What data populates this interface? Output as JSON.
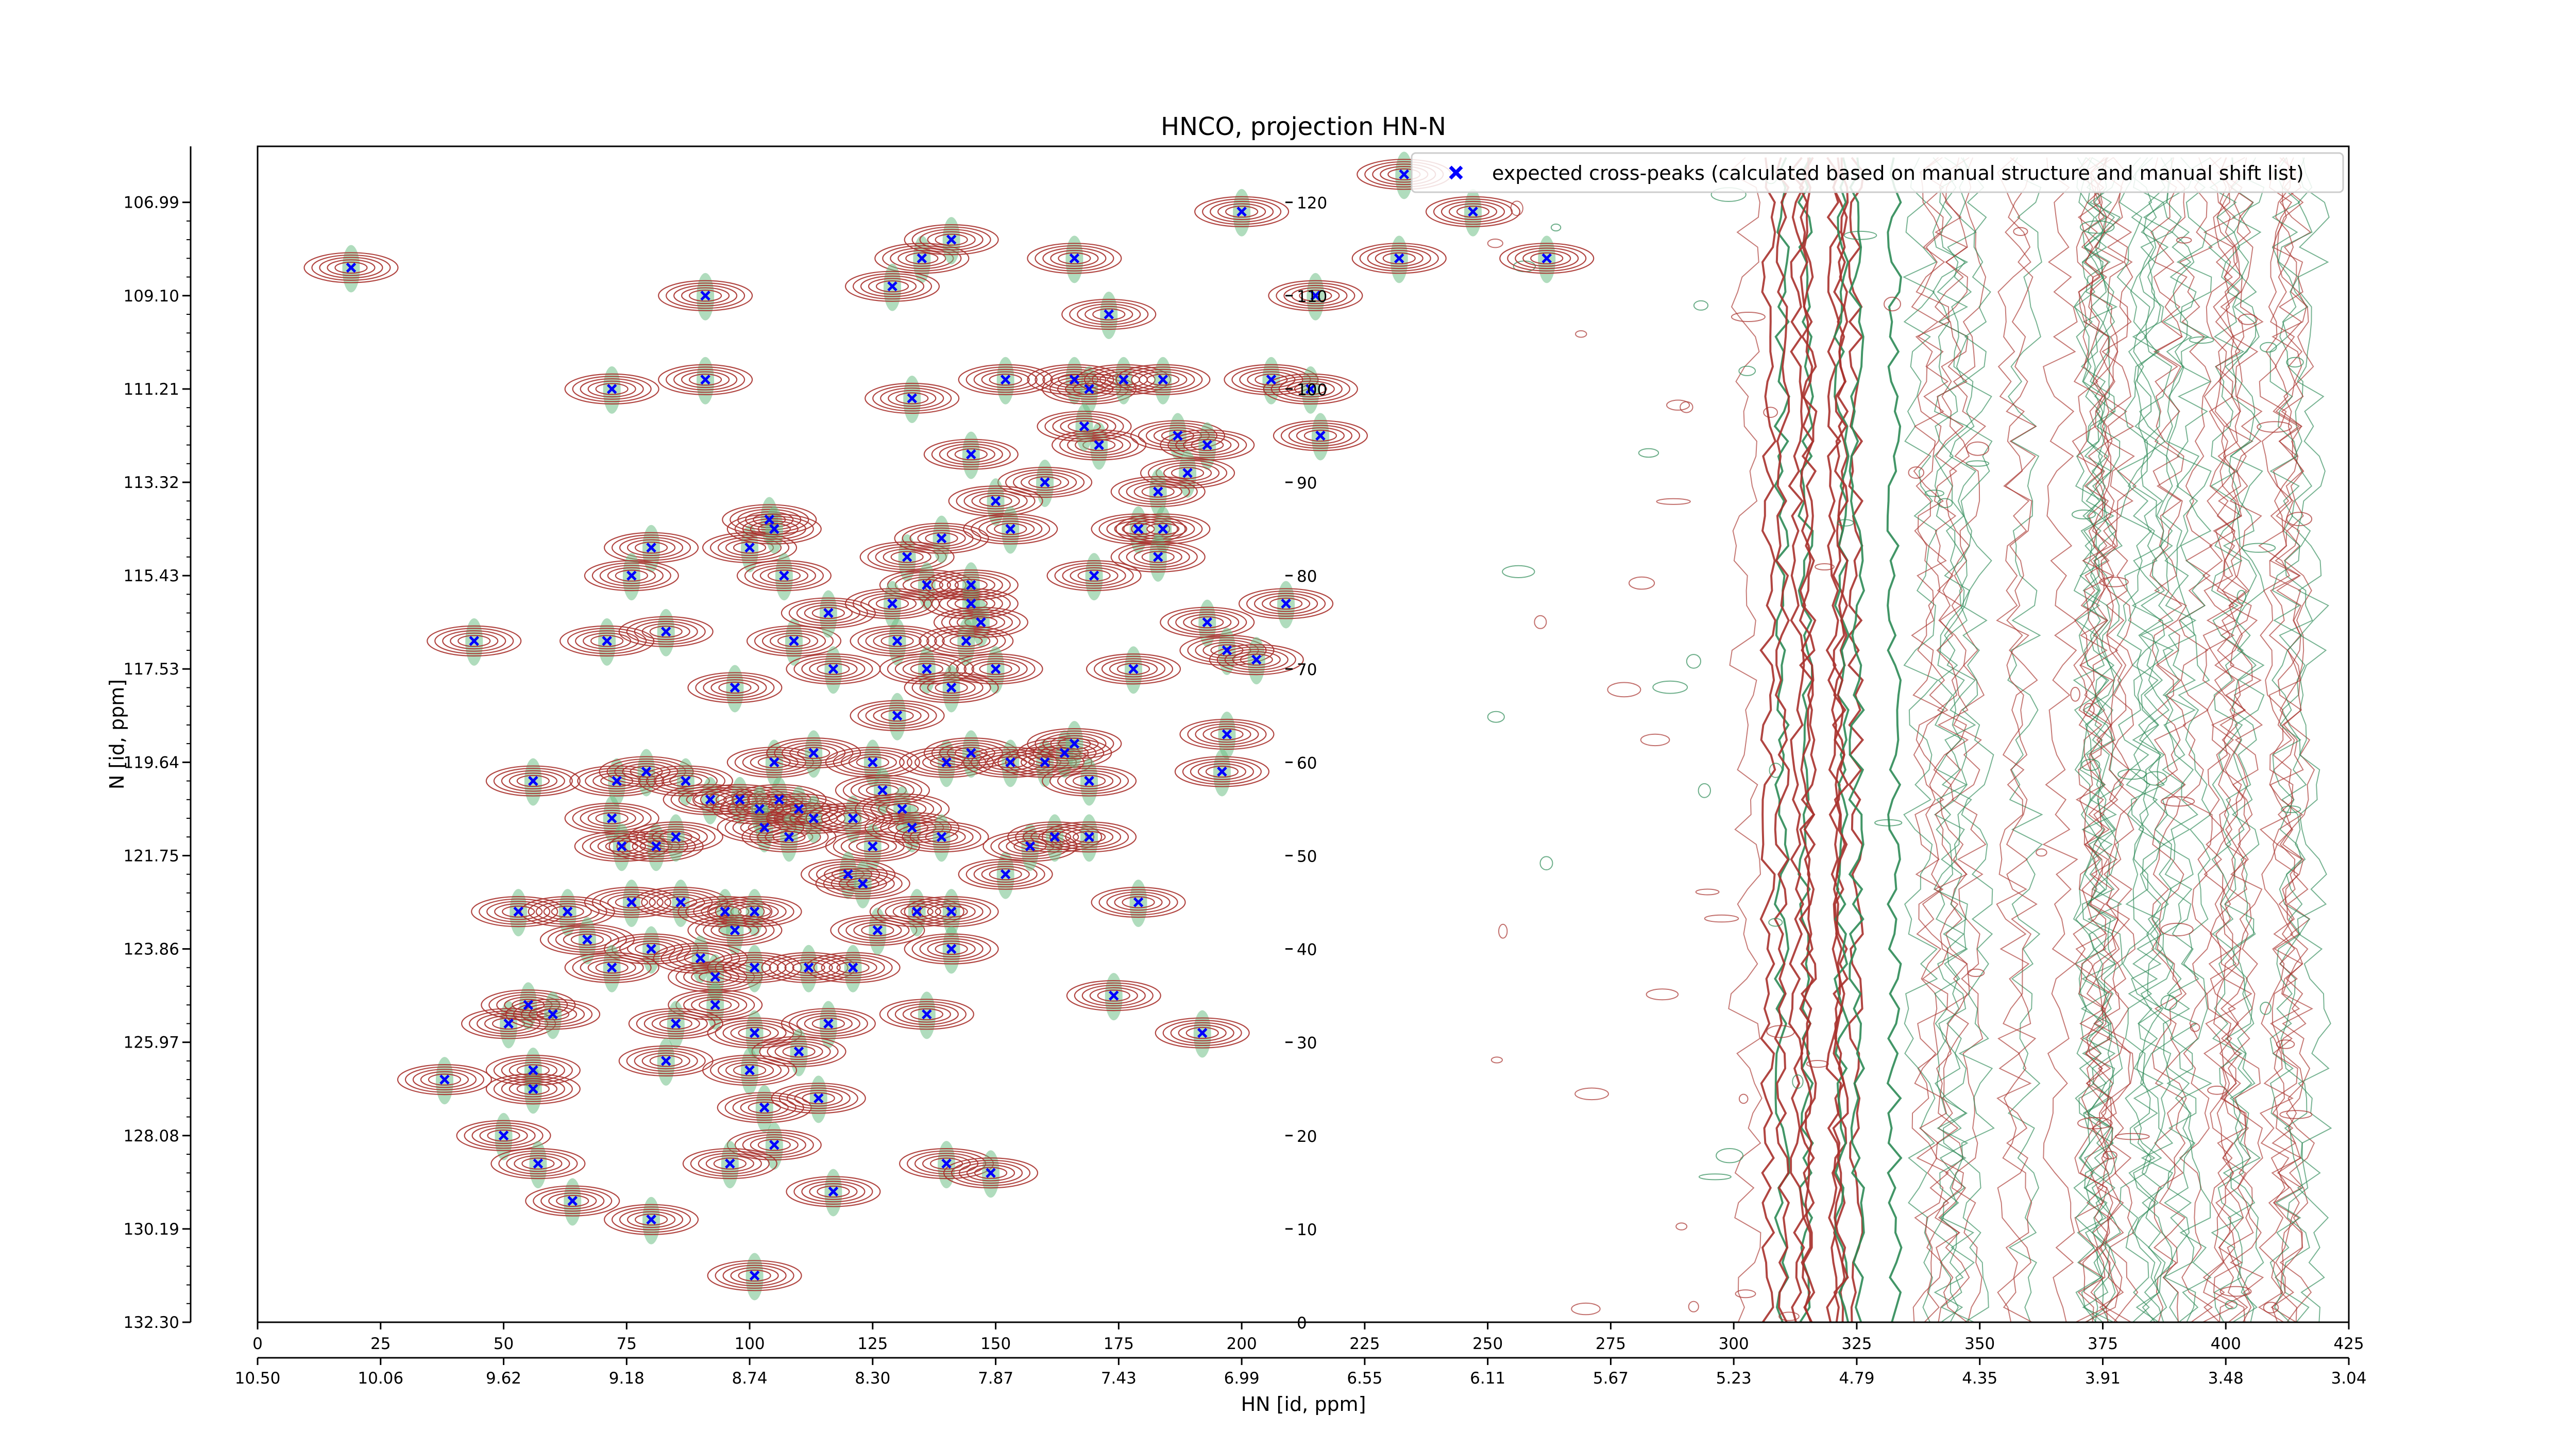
{
  "chart_data": {
    "type": "scatter",
    "title": "HNCO, projection HN-N",
    "xlabel": "HN [id, ppm]",
    "ylabel": "N [id, ppm]",
    "x_index_ticks": [
      "0",
      "25",
      "50",
      "75",
      "100",
      "125",
      "150",
      "175",
      "200",
      "225",
      "250",
      "275",
      "300",
      "325",
      "350",
      "375",
      "400",
      "425"
    ],
    "x_ppm_ticks": [
      "10.50",
      "10.06",
      "9.62",
      "9.18",
      "8.74",
      "8.30",
      "7.87",
      "7.43",
      "6.99",
      "6.55",
      "6.11",
      "5.67",
      "5.23",
      "4.79",
      "4.35",
      "3.91",
      "3.48",
      "3.04"
    ],
    "y_index_ticks": [
      "0",
      "10",
      "20",
      "30",
      "40",
      "50",
      "60",
      "70",
      "80",
      "90",
      "100",
      "110",
      "120"
    ],
    "y_ppm_ticks": [
      "132.30",
      "130.19",
      "128.08",
      "125.97",
      "123.86",
      "121.75",
      "119.64",
      "117.53",
      "115.43",
      "113.32",
      "111.21",
      "109.10",
      "106.99"
    ],
    "xlim": [
      0,
      425
    ],
    "ylim": [
      0,
      126
    ],
    "grid": false,
    "legend_position": "top-right",
    "series": [
      {
        "name": "expected cross-peaks (calculated based on manual structure and manual shift list)",
        "color": "#0000ff",
        "marker": "x",
        "points": [
          [
            19,
            113
          ],
          [
            91,
            110
          ],
          [
            72,
            100
          ],
          [
            91,
            101
          ],
          [
            135,
            114
          ],
          [
            141,
            116
          ],
          [
            129,
            111
          ],
          [
            166,
            114
          ],
          [
            173,
            108
          ],
          [
            215,
            110
          ],
          [
            200,
            119
          ],
          [
            233,
            123
          ],
          [
            247,
            119
          ],
          [
            232,
            114
          ],
          [
            262,
            114
          ],
          [
            133,
            99
          ],
          [
            152,
            101
          ],
          [
            166,
            101
          ],
          [
            169,
            100
          ],
          [
            171,
            94
          ],
          [
            176,
            101
          ],
          [
            184,
            101
          ],
          [
            206,
            101
          ],
          [
            214,
            100
          ],
          [
            216,
            95
          ],
          [
            168,
            96
          ],
          [
            187,
            95
          ],
          [
            193,
            94
          ],
          [
            145,
            93
          ],
          [
            160,
            90
          ],
          [
            150,
            88
          ],
          [
            189,
            91
          ],
          [
            183,
            89
          ],
          [
            179,
            85
          ],
          [
            184,
            85
          ],
          [
            80,
            83
          ],
          [
            76,
            80
          ],
          [
            100,
            83
          ],
          [
            104,
            86
          ],
          [
            105,
            85
          ],
          [
            107,
            80
          ],
          [
            132,
            82
          ],
          [
            136,
            79
          ],
          [
            129,
            77
          ],
          [
            139,
            84
          ],
          [
            153,
            85
          ],
          [
            145,
            77
          ],
          [
            145,
            79
          ],
          [
            147,
            75
          ],
          [
            170,
            80
          ],
          [
            183,
            82
          ],
          [
            44,
            73
          ],
          [
            71,
            73
          ],
          [
            83,
            74
          ],
          [
            109,
            73
          ],
          [
            116,
            76
          ],
          [
            117,
            70
          ],
          [
            130,
            73
          ],
          [
            136,
            70
          ],
          [
            144,
            73
          ],
          [
            150,
            70
          ],
          [
            97,
            68
          ],
          [
            141,
            68
          ],
          [
            178,
            70
          ],
          [
            193,
            75
          ],
          [
            197,
            72
          ],
          [
            203,
            71
          ],
          [
            209,
            77
          ],
          [
            56,
            58
          ],
          [
            73,
            58
          ],
          [
            79,
            59
          ],
          [
            87,
            58
          ],
          [
            92,
            56
          ],
          [
            98,
            56
          ],
          [
            105,
            60
          ],
          [
            106,
            56
          ],
          [
            110,
            55
          ],
          [
            103,
            53
          ],
          [
            113,
            61
          ],
          [
            125,
            60
          ],
          [
            130,
            65
          ],
          [
            140,
            60
          ],
          [
            145,
            61
          ],
          [
            153,
            60
          ],
          [
            160,
            60
          ],
          [
            164,
            61
          ],
          [
            169,
            58
          ],
          [
            166,
            62
          ],
          [
            197,
            63
          ],
          [
            196,
            59
          ],
          [
            72,
            54
          ],
          [
            74,
            51
          ],
          [
            81,
            51
          ],
          [
            85,
            52
          ],
          [
            102,
            55
          ],
          [
            108,
            52
          ],
          [
            113,
            54
          ],
          [
            121,
            54
          ],
          [
            125,
            51
          ],
          [
            127,
            57
          ],
          [
            131,
            55
          ],
          [
            133,
            53
          ],
          [
            139,
            52
          ],
          [
            152,
            48
          ],
          [
            157,
            51
          ],
          [
            162,
            52
          ],
          [
            169,
            52
          ],
          [
            120,
            48
          ],
          [
            123,
            47
          ],
          [
            53,
            44
          ],
          [
            63,
            44
          ],
          [
            76,
            45
          ],
          [
            80,
            40
          ],
          [
            86,
            45
          ],
          [
            95,
            44
          ],
          [
            101,
            44
          ],
          [
            97,
            42
          ],
          [
            67,
            41
          ],
          [
            72,
            38
          ],
          [
            90,
            39
          ],
          [
            93,
            37
          ],
          [
            101,
            38
          ],
          [
            112,
            38
          ],
          [
            121,
            38
          ],
          [
            126,
            42
          ],
          [
            134,
            44
          ],
          [
            141,
            44
          ],
          [
            141,
            40
          ],
          [
            179,
            45
          ],
          [
            93,
            34
          ],
          [
            85,
            32
          ],
          [
            51,
            32
          ],
          [
            55,
            34
          ],
          [
            60,
            33
          ],
          [
            101,
            31
          ],
          [
            116,
            32
          ],
          [
            110,
            29
          ],
          [
            136,
            33
          ],
          [
            174,
            35
          ],
          [
            192,
            31
          ],
          [
            38,
            26
          ],
          [
            56,
            27
          ],
          [
            56,
            25
          ],
          [
            83,
            28
          ],
          [
            100,
            27
          ],
          [
            103,
            23
          ],
          [
            114,
            24
          ],
          [
            50,
            20
          ],
          [
            57,
            17
          ],
          [
            105,
            19
          ],
          [
            96,
            17
          ],
          [
            64,
            13
          ],
          [
            80,
            11
          ],
          [
            117,
            14
          ],
          [
            140,
            17
          ],
          [
            149,
            16
          ],
          [
            101,
            5
          ]
        ]
      }
    ]
  }
}
